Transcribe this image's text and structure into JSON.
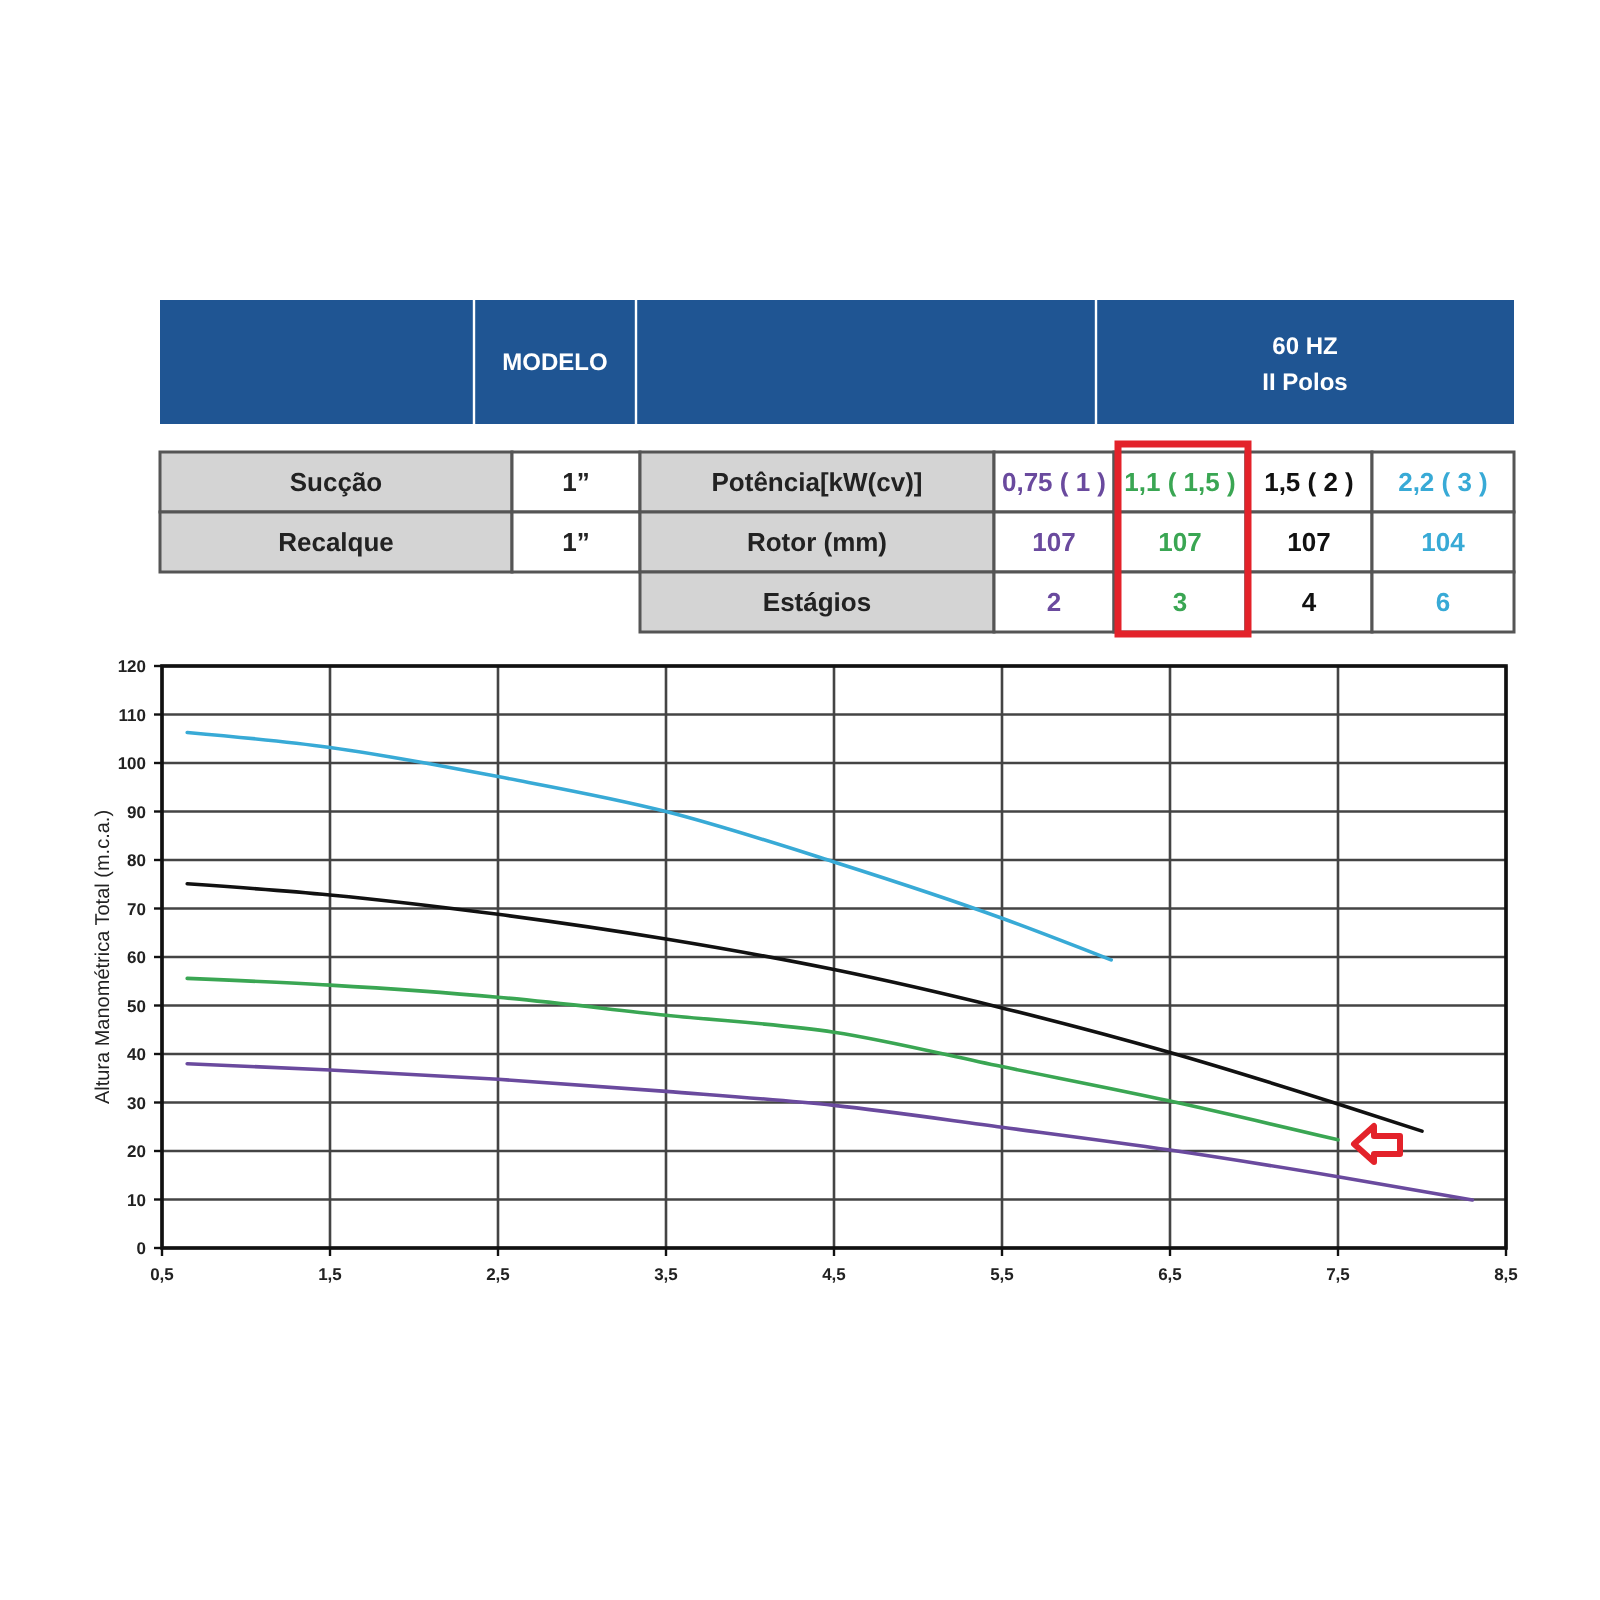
{
  "chart_data": {
    "type": "line",
    "ylabel": "Altura Manométrica Total (m.c.a.)",
    "xlim": [
      0.5,
      8.5
    ],
    "xticks": [
      {
        "value": 0.5,
        "label": "0,5"
      },
      {
        "value": 1.5,
        "label": "1,5"
      },
      {
        "value": 2.5,
        "label": "2,5"
      },
      {
        "value": 3.5,
        "label": "3,5"
      },
      {
        "value": 4.5,
        "label": "4,5"
      },
      {
        "value": 5.5,
        "label": "5,5"
      },
      {
        "value": 6.5,
        "label": "6,5"
      },
      {
        "value": 7.5,
        "label": "7,5"
      },
      {
        "value": 8.5,
        "label": "8,5"
      }
    ],
    "ylim": [
      0,
      120
    ],
    "yticks": [
      0,
      10,
      20,
      30,
      40,
      50,
      60,
      70,
      80,
      90,
      100,
      110,
      120
    ],
    "grid": true,
    "legend": "top",
    "series": [
      {
        "name": "0,75 ( 1 )",
        "color": "#6a4a9e",
        "x": [
          0.65,
          1.5,
          2.5,
          3.5,
          4.5,
          5.5,
          6.5,
          7.5,
          8.3
        ],
        "values": [
          38.0,
          36.7,
          34.8,
          32.3,
          29.4,
          24.9,
          20.2,
          14.7,
          9.9
        ]
      },
      {
        "name": "1,1 ( 1,5 )",
        "color": "#3aa653",
        "x": [
          0.65,
          1.5,
          2.5,
          3.5,
          4.5,
          5.5,
          6.5,
          7.5
        ],
        "values": [
          55.6,
          54.2,
          51.7,
          48.0,
          44.5,
          37.4,
          30.3,
          22.3
        ]
      },
      {
        "name": "1,5 ( 2 )",
        "color": "#111111",
        "x": [
          0.65,
          1.5,
          2.5,
          3.5,
          4.5,
          5.5,
          6.5,
          7.5,
          8.0
        ],
        "values": [
          75.1,
          72.8,
          68.8,
          63.7,
          57.4,
          49.5,
          40.3,
          29.7,
          24.1
        ]
      },
      {
        "name": "2,2 ( 3 )",
        "color": "#38aad6",
        "x": [
          0.65,
          1.5,
          2.1,
          2.5,
          3.5,
          4.5,
          5.5,
          6.15
        ],
        "values": [
          106.3,
          103.2,
          99.8,
          97.2,
          90.0,
          79.6,
          68.0,
          59.4
        ]
      }
    ],
    "annotations": [
      "MODELO",
      "60 HZ",
      "II Polos",
      "Sucção",
      "1”",
      "Recalque",
      "1”",
      "Potência[kW(cv)]",
      "Rotor (mm)",
      "107",
      "107",
      "107",
      "104",
      "Estágios",
      "2",
      "3",
      "4",
      "6"
    ]
  }
}
